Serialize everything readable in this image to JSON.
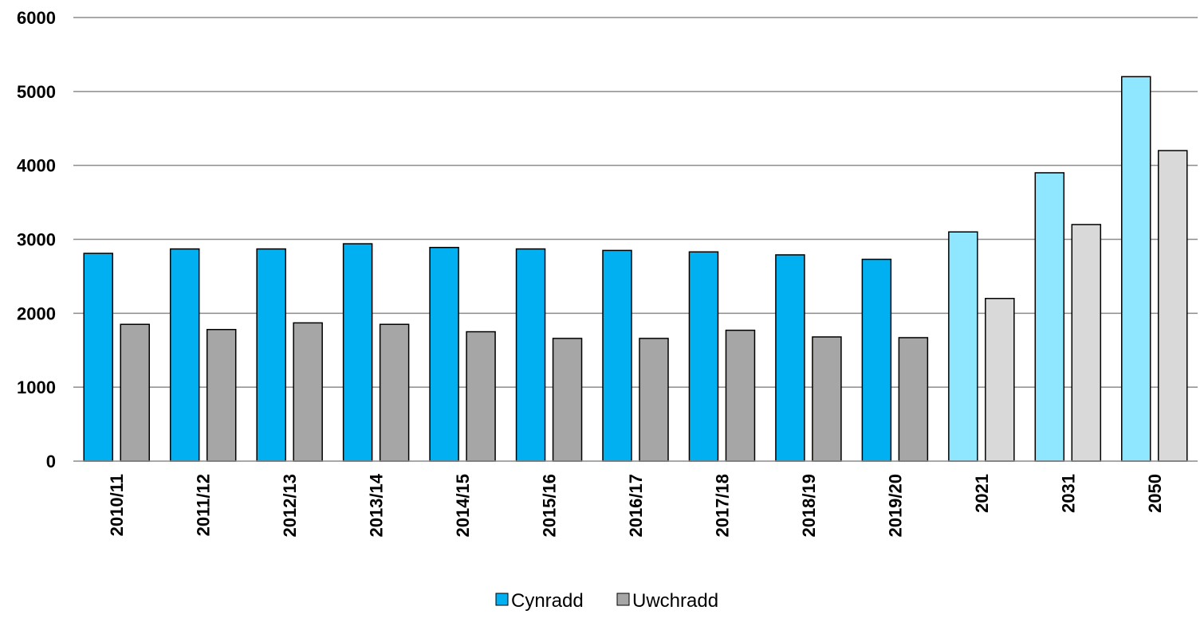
{
  "chart_data": {
    "type": "bar",
    "title": "",
    "xlabel": "",
    "ylabel": "",
    "ylim": [
      0,
      6000
    ],
    "yticks": [
      0,
      1000,
      2000,
      3000,
      4000,
      5000,
      6000
    ],
    "grid": true,
    "legend_position": "bottom",
    "categories": [
      "2010/11",
      "2011/12",
      "2012/13",
      "2013/14",
      "2014/15",
      "2015/16",
      "2016/17",
      "2017/18",
      "2018/19",
      "2019/20",
      "2021",
      "2031",
      "2050"
    ],
    "series": [
      {
        "name": "Cynradd",
        "color": "#00B0F0",
        "projected_color": "#8EE6FF",
        "values": [
          2810,
          2870,
          2870,
          2940,
          2890,
          2870,
          2850,
          2830,
          2790,
          2730,
          3100,
          3900,
          5200
        ]
      },
      {
        "name": "Uwchradd",
        "color": "#A6A6A6",
        "projected_color": "#D9D9D9",
        "values": [
          1850,
          1780,
          1870,
          1850,
          1750,
          1660,
          1660,
          1770,
          1680,
          1670,
          2200,
          3200,
          4200
        ]
      }
    ],
    "projected_categories": [
      "2021",
      "2031",
      "2050"
    ]
  }
}
